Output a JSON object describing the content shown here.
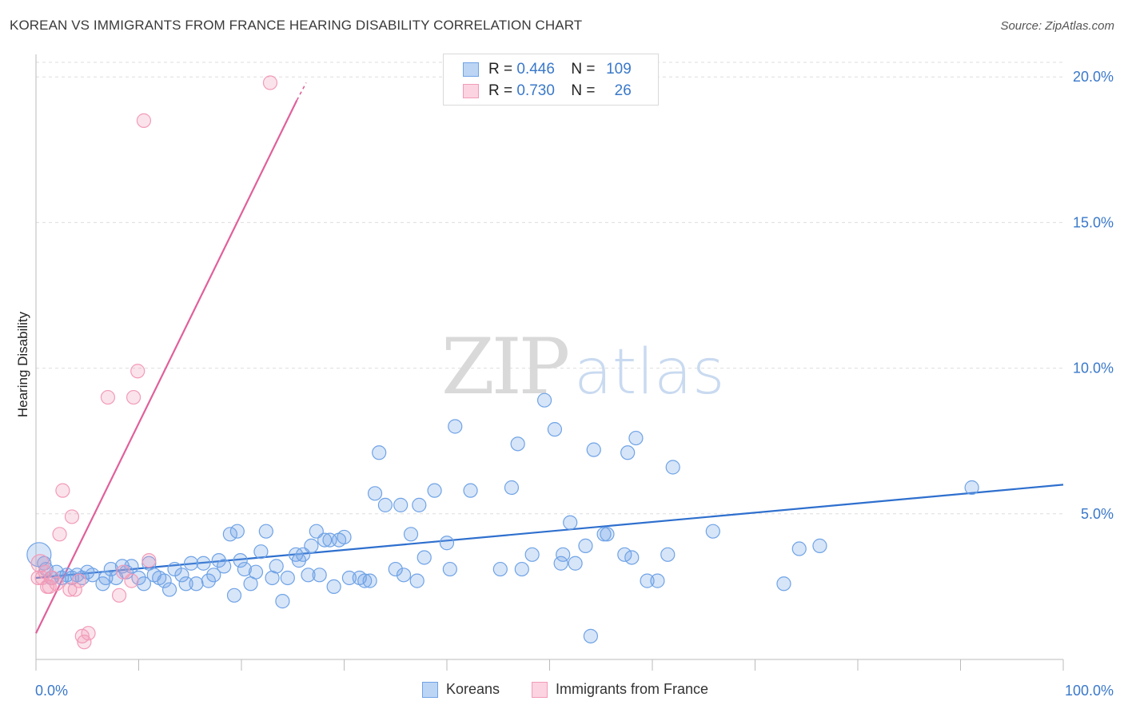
{
  "header": {
    "title": "KOREAN VS IMMIGRANTS FROM FRANCE HEARING DISABILITY CORRELATION CHART",
    "source": "Source: ZipAtlas.com"
  },
  "watermark": {
    "zip": "ZIP",
    "atlas": "atlas"
  },
  "legend_top": {
    "rows": [
      {
        "r_label": "R =",
        "r_value": "0.446",
        "n_label": "N =",
        "n_value": "109",
        "color": "#6fa3e6"
      },
      {
        "r_label": "R =",
        "r_value": "0.730",
        "n_label": "N =",
        "n_value": "26",
        "color": "#f29bb8"
      }
    ]
  },
  "legend_bottom": {
    "items": [
      {
        "label": "Koreans",
        "color": "#6fa3e6"
      },
      {
        "label": "Immigrants from France",
        "color": "#f29bb8"
      }
    ]
  },
  "chart_data": {
    "type": "scatter",
    "title": "KOREAN VS IMMIGRANTS FROM FRANCE HEARING DISABILITY CORRELATION CHART",
    "xlabel": "",
    "ylabel": "Hearing Disability",
    "xlim": [
      0,
      100
    ],
    "ylim": [
      0,
      20.5
    ],
    "x_tick_labels": [
      "0.0%",
      "100.0%"
    ],
    "y_ticks": [
      {
        "value": 5,
        "label": "5.0%"
      },
      {
        "value": 10,
        "label": "10.0%"
      },
      {
        "value": 15,
        "label": "15.0%"
      },
      {
        "value": 20,
        "label": "20.0%"
      }
    ],
    "grid": "horizontal dashed",
    "series": [
      {
        "name": "Koreans",
        "color": "#6fa3e6",
        "trend": {
          "x": [
            0,
            100
          ],
          "y": [
            2.8,
            6.0
          ],
          "color": "#2e6fce"
        },
        "points": [
          [
            0.3,
            3.6
          ],
          [
            0.8,
            3.3
          ],
          [
            1.0,
            3.1
          ],
          [
            1.5,
            2.8
          ],
          [
            2.0,
            3.0
          ],
          [
            2.5,
            2.8
          ],
          [
            3.0,
            2.9
          ],
          [
            3.5,
            2.8
          ],
          [
            4.0,
            2.9
          ],
          [
            4.5,
            2.8
          ],
          [
            5.0,
            3.0
          ],
          [
            5.5,
            2.9
          ],
          [
            6.5,
            2.6
          ],
          [
            6.8,
            2.8
          ],
          [
            7.3,
            3.1
          ],
          [
            7.8,
            2.8
          ],
          [
            8.4,
            3.2
          ],
          [
            8.8,
            3.0
          ],
          [
            9.3,
            3.2
          ],
          [
            10.0,
            2.8
          ],
          [
            10.5,
            2.6
          ],
          [
            11.0,
            3.3
          ],
          [
            11.5,
            2.9
          ],
          [
            12.0,
            2.8
          ],
          [
            12.5,
            2.7
          ],
          [
            13.0,
            2.4
          ],
          [
            13.5,
            3.1
          ],
          [
            14.2,
            2.9
          ],
          [
            14.6,
            2.6
          ],
          [
            15.1,
            3.3
          ],
          [
            15.6,
            2.6
          ],
          [
            16.3,
            3.3
          ],
          [
            16.8,
            2.7
          ],
          [
            17.3,
            2.9
          ],
          [
            17.8,
            3.4
          ],
          [
            18.3,
            3.2
          ],
          [
            18.9,
            4.3
          ],
          [
            19.3,
            2.2
          ],
          [
            19.6,
            4.4
          ],
          [
            19.9,
            3.4
          ],
          [
            20.3,
            3.1
          ],
          [
            20.9,
            2.6
          ],
          [
            21.4,
            3.0
          ],
          [
            21.9,
            3.7
          ],
          [
            22.4,
            4.4
          ],
          [
            23.0,
            2.8
          ],
          [
            23.4,
            3.2
          ],
          [
            24.0,
            2.0
          ],
          [
            24.5,
            2.8
          ],
          [
            25.3,
            3.6
          ],
          [
            25.6,
            3.4
          ],
          [
            26.0,
            3.6
          ],
          [
            26.5,
            2.9
          ],
          [
            26.8,
            3.9
          ],
          [
            27.3,
            4.4
          ],
          [
            27.6,
            2.9
          ],
          [
            28.1,
            4.1
          ],
          [
            28.6,
            4.1
          ],
          [
            29.0,
            2.5
          ],
          [
            29.5,
            4.1
          ],
          [
            30.0,
            4.2
          ],
          [
            30.5,
            2.8
          ],
          [
            31.5,
            2.8
          ],
          [
            32.0,
            2.7
          ],
          [
            32.5,
            2.7
          ],
          [
            33.0,
            5.7
          ],
          [
            33.4,
            7.1
          ],
          [
            34.0,
            5.3
          ],
          [
            35.0,
            3.1
          ],
          [
            35.5,
            5.3
          ],
          [
            35.8,
            2.9
          ],
          [
            36.5,
            4.3
          ],
          [
            37.1,
            2.7
          ],
          [
            37.3,
            5.3
          ],
          [
            37.8,
            3.5
          ],
          [
            38.8,
            5.8
          ],
          [
            40.0,
            4.0
          ],
          [
            40.3,
            3.1
          ],
          [
            40.8,
            8.0
          ],
          [
            42.3,
            5.8
          ],
          [
            45.2,
            3.1
          ],
          [
            46.3,
            5.9
          ],
          [
            46.9,
            7.4
          ],
          [
            47.3,
            3.1
          ],
          [
            48.3,
            3.6
          ],
          [
            49.5,
            8.9
          ],
          [
            50.5,
            7.9
          ],
          [
            51.1,
            3.3
          ],
          [
            51.3,
            3.6
          ],
          [
            52.0,
            4.7
          ],
          [
            52.5,
            3.3
          ],
          [
            53.5,
            3.9
          ],
          [
            54.0,
            0.8
          ],
          [
            54.3,
            7.2
          ],
          [
            55.3,
            4.3
          ],
          [
            55.6,
            4.3
          ],
          [
            57.3,
            3.6
          ],
          [
            57.6,
            7.1
          ],
          [
            58.0,
            3.5
          ],
          [
            58.4,
            7.6
          ],
          [
            59.5,
            2.7
          ],
          [
            60.5,
            2.7
          ],
          [
            61.5,
            3.6
          ],
          [
            62.0,
            6.6
          ],
          [
            65.9,
            4.4
          ],
          [
            72.8,
            2.6
          ],
          [
            74.3,
            3.8
          ],
          [
            76.3,
            3.9
          ],
          [
            91.1,
            5.9
          ]
        ]
      },
      {
        "name": "Immigrants from France",
        "color": "#f29bb8",
        "trend": {
          "x": [
            0,
            25.4
          ],
          "y": [
            0.9,
            19.2
          ],
          "color": "#e0609a",
          "dashed_extension_to": [
            26.3,
            19.8
          ]
        },
        "points": [
          [
            0.2,
            2.8
          ],
          [
            0.4,
            3.3
          ],
          [
            0.6,
            2.8
          ],
          [
            0.9,
            3.0
          ],
          [
            1.1,
            2.5
          ],
          [
            1.3,
            2.5
          ],
          [
            1.6,
            2.8
          ],
          [
            2.0,
            2.6
          ],
          [
            2.3,
            4.3
          ],
          [
            2.6,
            5.8
          ],
          [
            3.3,
            2.4
          ],
          [
            3.5,
            4.9
          ],
          [
            3.8,
            2.4
          ],
          [
            4.2,
            2.7
          ],
          [
            4.5,
            0.8
          ],
          [
            4.7,
            0.6
          ],
          [
            5.1,
            0.9
          ],
          [
            7.0,
            9.0
          ],
          [
            8.1,
            2.2
          ],
          [
            8.5,
            3.0
          ],
          [
            9.3,
            2.7
          ],
          [
            9.5,
            9.0
          ],
          [
            9.9,
            9.9
          ],
          [
            10.5,
            18.5
          ],
          [
            11.0,
            3.4
          ],
          [
            22.8,
            19.8
          ]
        ]
      }
    ]
  }
}
